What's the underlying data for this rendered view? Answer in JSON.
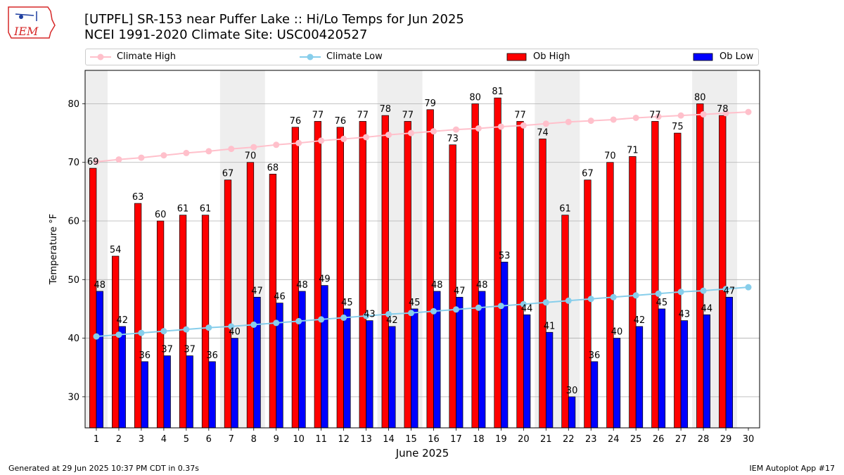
{
  "logo": {
    "text": "IEM",
    "color": "#d62828",
    "icon": "iowa-state-outline-icon"
  },
  "header": {
    "title": "[UTPFL] SR-153 near Puffer Lake  :: Hi/Lo Temps for Jun 2025",
    "subtitle": "NCEI 1991-2020 Climate Site: USC00420527"
  },
  "legend": [
    {
      "label": "Climate High",
      "color": "#ffc0cb",
      "kind": "line"
    },
    {
      "label": "Climate Low",
      "color": "#87ceeb",
      "kind": "line"
    },
    {
      "label": "Ob High",
      "color": "#ff0000",
      "kind": "bar"
    },
    {
      "label": "Ob Low",
      "color": "#0000ff",
      "kind": "bar"
    }
  ],
  "chart_data": {
    "type": "bar",
    "xlabel": "June 2025",
    "ylabel": "Temperature °F",
    "ylim": [
      24.7,
      85.7
    ],
    "yticks": [
      30,
      40,
      50,
      60,
      70,
      80
    ],
    "categories": [
      "1",
      "2",
      "3",
      "4",
      "5",
      "6",
      "7",
      "8",
      "9",
      "10",
      "11",
      "12",
      "13",
      "14",
      "15",
      "16",
      "17",
      "18",
      "19",
      "20",
      "21",
      "22",
      "23",
      "24",
      "25",
      "26",
      "27",
      "28",
      "29",
      "30"
    ],
    "weekend_shading": [
      [
        1,
        1
      ],
      [
        7,
        8
      ],
      [
        14,
        15
      ],
      [
        21,
        22
      ],
      [
        28,
        29
      ]
    ],
    "grid": "horizontal",
    "series": [
      {
        "name": "Ob High",
        "type": "bar",
        "color": "#ff0000",
        "values": [
          69,
          54,
          63,
          60,
          61,
          61,
          67,
          70,
          68,
          76,
          77,
          76,
          77,
          78,
          77,
          79,
          73,
          80,
          81,
          77,
          74,
          61,
          67,
          70,
          71,
          77,
          75,
          80,
          78,
          null
        ]
      },
      {
        "name": "Ob Low",
        "type": "bar",
        "color": "#0000ff",
        "values": [
          48,
          42,
          36,
          37,
          37,
          36,
          40,
          47,
          46,
          48,
          49,
          45,
          43,
          42,
          45,
          48,
          47,
          48,
          53,
          44,
          41,
          30,
          36,
          40,
          42,
          45,
          43,
          44,
          47,
          null
        ]
      },
      {
        "name": "Climate High",
        "type": "line",
        "color": "#ffc0cb",
        "values": [
          70.1,
          70.5,
          70.8,
          71.2,
          71.6,
          71.9,
          72.3,
          72.6,
          73.0,
          73.3,
          73.7,
          74.0,
          74.3,
          74.7,
          75.0,
          75.3,
          75.6,
          75.8,
          76.1,
          76.3,
          76.6,
          76.9,
          77.1,
          77.3,
          77.6,
          77.8,
          78.0,
          78.2,
          78.4,
          78.6
        ]
      },
      {
        "name": "Climate Low",
        "type": "line",
        "color": "#87ceeb",
        "values": [
          40.3,
          40.6,
          40.9,
          41.2,
          41.5,
          41.8,
          42.0,
          42.3,
          42.6,
          42.9,
          43.2,
          43.5,
          43.8,
          44.1,
          44.3,
          44.6,
          44.9,
          45.2,
          45.5,
          45.8,
          46.1,
          46.4,
          46.7,
          47.0,
          47.3,
          47.6,
          47.9,
          48.1,
          48.4,
          48.7
        ]
      }
    ]
  },
  "footer": {
    "generated": "Generated at 29 Jun 2025 10:37 PM CDT in 0.37s",
    "app": "IEM Autoplot App #17"
  }
}
